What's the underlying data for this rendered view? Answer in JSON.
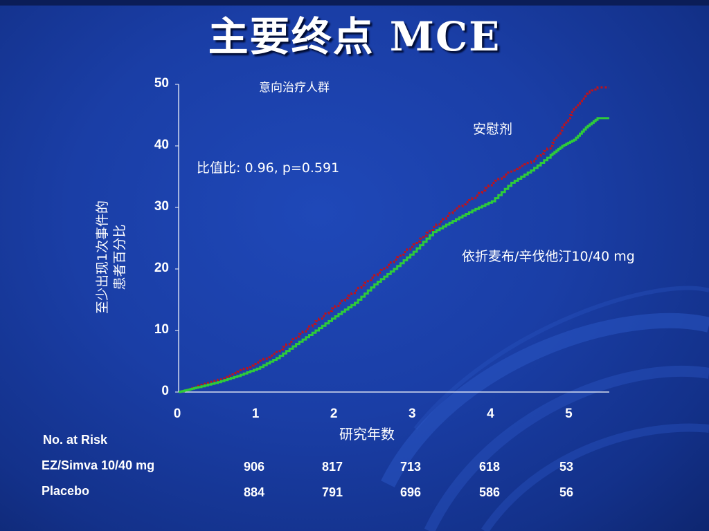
{
  "slide": {
    "title": "主要终点  MCE",
    "subtitle": "意向治疗人群"
  },
  "annotations": {
    "odds_ratio": "比值比:  0.96,  p=0.591",
    "placebo_label": "安慰剂",
    "treatment_label": "依折麦布/辛伐他汀10/40 mg"
  },
  "axes": {
    "ylabel_line1": "至少出现1次事件的",
    "ylabel_line2": "患者百分比",
    "xlabel": "研究年数"
  },
  "chart_data": {
    "type": "line",
    "xlabel": "研究年数",
    "ylabel": "至少出现1次事件的患者百分比",
    "xlim": [
      0,
      5.5
    ],
    "ylim": [
      0,
      50
    ],
    "x_ticks": [
      0,
      1,
      2,
      3,
      4,
      5
    ],
    "y_ticks": [
      0,
      10,
      20,
      30,
      40,
      50
    ],
    "grid": false,
    "series": [
      {
        "name": "安慰剂",
        "color": "#c0121a",
        "style": "dotted",
        "points": [
          [
            0,
            0
          ],
          [
            0.1,
            0.3
          ],
          [
            0.25,
            1
          ],
          [
            0.5,
            2
          ],
          [
            0.75,
            3.3
          ],
          [
            1,
            4.8
          ],
          [
            1.25,
            6.5
          ],
          [
            1.5,
            9
          ],
          [
            1.75,
            11.5
          ],
          [
            2,
            14
          ],
          [
            2.25,
            16.5
          ],
          [
            2.5,
            19
          ],
          [
            2.75,
            21.5
          ],
          [
            3,
            24
          ],
          [
            3.25,
            26.8
          ],
          [
            3.5,
            29.5
          ],
          [
            3.75,
            31.5
          ],
          [
            4,
            34
          ],
          [
            4.25,
            36
          ],
          [
            4.5,
            37.5
          ],
          [
            4.75,
            40
          ],
          [
            4.9,
            43
          ],
          [
            5.05,
            46
          ],
          [
            5.2,
            48.5
          ],
          [
            5.35,
            49.5
          ],
          [
            5.5,
            49.5
          ]
        ]
      },
      {
        "name": "依折麦布/辛伐他汀10/40 mg",
        "color": "#2ecc3a",
        "style": "solid",
        "points": [
          [
            0,
            0
          ],
          [
            0.1,
            0.3
          ],
          [
            0.25,
            0.8
          ],
          [
            0.5,
            1.6
          ],
          [
            0.75,
            2.6
          ],
          [
            1,
            3.8
          ],
          [
            1.25,
            5.5
          ],
          [
            1.5,
            7.8
          ],
          [
            1.75,
            10
          ],
          [
            2,
            12.3
          ],
          [
            2.25,
            14.5
          ],
          [
            2.5,
            17.5
          ],
          [
            2.75,
            20
          ],
          [
            3,
            22.8
          ],
          [
            3.25,
            26
          ],
          [
            3.5,
            27.8
          ],
          [
            3.75,
            29.5
          ],
          [
            4,
            31
          ],
          [
            4.25,
            34
          ],
          [
            4.5,
            36
          ],
          [
            4.75,
            38.5
          ],
          [
            4.9,
            40
          ],
          [
            5.05,
            41
          ],
          [
            5.2,
            43
          ],
          [
            5.35,
            44.5
          ],
          [
            5.5,
            44.5
          ]
        ]
      }
    ],
    "annotations": [
      "比值比:  0.96,  p=0.591",
      "安慰剂",
      "依折麦布/辛伐他汀10/40 mg"
    ]
  },
  "risk_table": {
    "header": "No. at Risk",
    "rows": [
      {
        "label": "EZ/Simva 10/40 mg",
        "values": [
          "906",
          "817",
          "713",
          "618",
          "53"
        ]
      },
      {
        "label": "Placebo",
        "values": [
          "884",
          "791",
          "696",
          "586",
          "56"
        ]
      }
    ]
  }
}
